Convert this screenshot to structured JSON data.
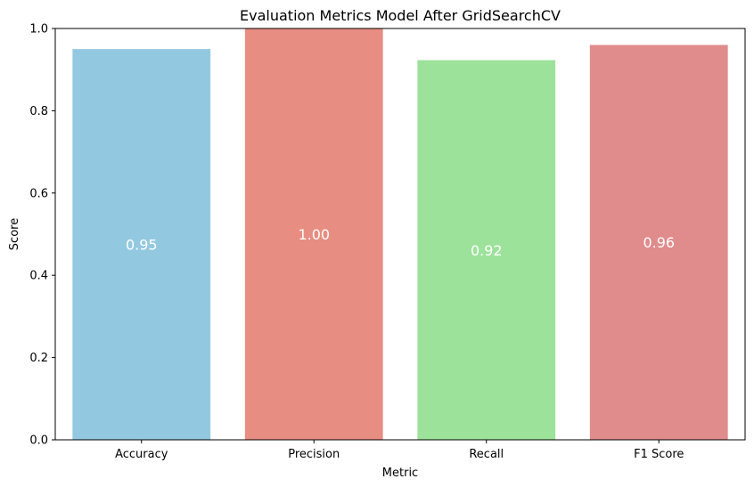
{
  "chart_data": {
    "type": "bar",
    "title": "Evaluation Metrics Model After GridSearchCV",
    "xlabel": "Metric",
    "ylabel": "Score",
    "categories": [
      "Accuracy",
      "Precision",
      "Recall",
      "F1 Score"
    ],
    "values": [
      0.95,
      1.0,
      0.923,
      0.96
    ],
    "data_labels": [
      "0.95",
      "1.00",
      "0.92",
      "0.96"
    ],
    "colors": [
      "#93c9e0",
      "#e88d81",
      "#9de29b",
      "#e08b8c"
    ],
    "ylim": [
      0,
      1
    ],
    "yticks": [
      0.0,
      0.2,
      0.4,
      0.6,
      0.8,
      1.0
    ],
    "ytick_labels": [
      "0.0",
      "0.2",
      "0.4",
      "0.6",
      "0.8",
      "1.0"
    ],
    "grid": false,
    "legend": "none"
  }
}
